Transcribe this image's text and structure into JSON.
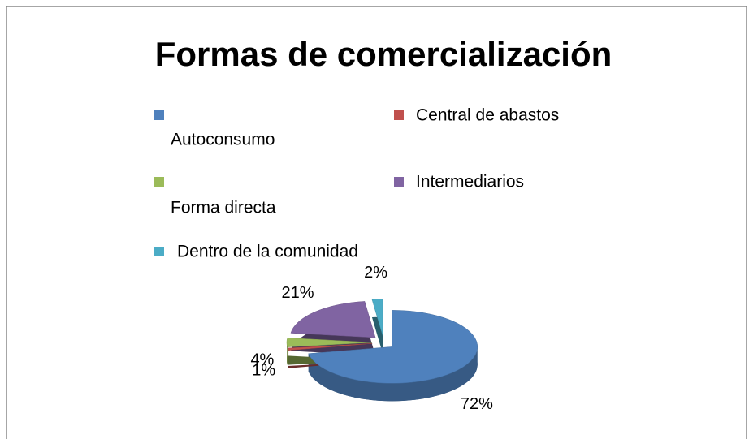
{
  "chart_data": {
    "type": "pie",
    "title": "Formas de comercialización",
    "categories": [
      "Autoconsumo",
      "Central de abastos",
      "Forma directa",
      "Intermediarios",
      "Dentro de la comunidad"
    ],
    "values": [
      72,
      1,
      4,
      21,
      2
    ],
    "value_labels": [
      "72%",
      "1%",
      "4%",
      "21%",
      "2%"
    ],
    "colors": [
      "#4f81bd",
      "#c0504d",
      "#9bbb59",
      "#8064a2",
      "#4bacc6"
    ],
    "legend": "top"
  }
}
